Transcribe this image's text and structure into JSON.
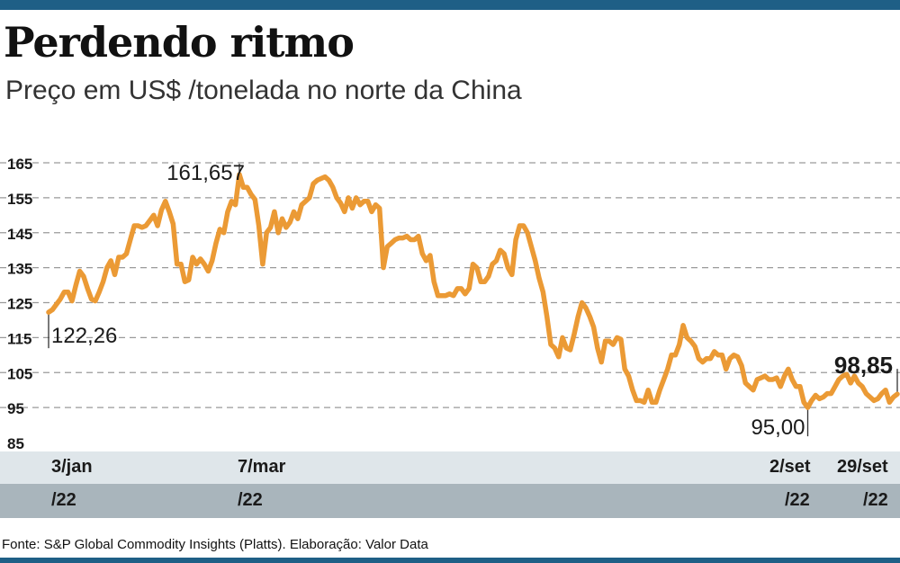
{
  "header": {
    "title": "Perdendo ritmo",
    "subtitle": "Preço em US$ /tonelada no norte da China"
  },
  "footer": {
    "source": "Fonte: S&P Global Commodity Insights (Platts). Elaboração: Valor Data"
  },
  "colors": {
    "line": "#eb9a35",
    "grid": "#9a9a9a",
    "bar_top": "#1f5f86",
    "axis_row_light": "#dfe6ea",
    "axis_row_dark": "#a9b5bc"
  },
  "x_labels": [
    {
      "line1": "3/jan",
      "line2": "/22"
    },
    {
      "line1": "7/mar",
      "line2": "/22"
    },
    {
      "line1": "2/set",
      "line2": "/22"
    },
    {
      "line1": "29/set",
      "line2": "/22"
    }
  ],
  "annotations": {
    "start": "122,26",
    "peak": "161,657",
    "low": "95,00",
    "last": "98,85"
  },
  "chart_data": {
    "type": "line",
    "title": "Perdendo ritmo",
    "subtitle": "Preço em US$ /tonelada no norte da China",
    "ylim": [
      85,
      165
    ],
    "yticks": [
      85,
      95,
      105,
      115,
      125,
      135,
      145,
      155,
      165
    ],
    "ytick_labels": [
      "85",
      "95",
      "105",
      "115",
      "125",
      "135",
      "145",
      "155",
      "165"
    ],
    "x_tick_dates": [
      "2022-01-03",
      "2022-03-07",
      "2022-09-02",
      "2022-09-29"
    ],
    "grid": true,
    "series": [
      {
        "values": [
          122.26,
          123,
          124.5,
          126,
          128,
          128,
          125.5,
          130,
          134,
          132.5,
          129,
          126,
          125.5,
          128,
          131,
          135,
          137,
          133,
          138,
          138,
          139,
          143,
          147,
          147,
          146.5,
          147,
          148.5,
          150,
          147,
          151.5,
          154,
          151,
          147.5,
          136,
          136,
          131,
          131.5,
          138,
          136,
          137.5,
          136,
          134,
          137,
          142,
          146,
          145,
          151,
          154,
          153,
          161.657,
          158,
          158,
          156,
          154.5,
          147,
          136,
          145,
          146.5,
          151,
          145,
          149,
          146.5,
          148,
          151,
          149,
          153,
          154,
          155,
          159,
          160,
          160.5,
          161,
          160,
          158,
          155,
          153.5,
          151,
          155,
          152,
          155,
          153,
          154,
          154,
          151,
          153,
          152,
          135,
          141,
          142,
          143,
          143.5,
          143.5,
          144,
          143,
          143,
          144,
          139,
          137,
          138.5,
          131,
          127,
          127,
          127,
          127.5,
          127,
          129,
          129,
          127.5,
          129,
          136,
          135,
          131,
          131,
          132.5,
          136,
          137,
          140,
          139,
          135,
          133,
          143,
          147,
          147,
          145,
          141,
          137,
          132,
          128,
          121,
          113,
          112,
          109.5,
          115,
          112,
          111.5,
          116,
          121,
          125,
          123.5,
          121,
          118,
          112,
          108,
          114,
          114,
          113,
          115,
          114.5,
          106,
          104,
          100,
          97,
          97,
          96.5,
          100,
          96.5,
          96.5,
          100,
          103,
          106,
          110,
          110,
          113,
          118.5,
          115,
          114,
          112.5,
          109,
          108,
          109,
          109,
          111,
          110,
          110,
          106,
          109,
          110,
          109.5,
          107,
          102,
          101,
          100,
          103,
          103.5,
          104,
          103,
          103,
          103.5,
          101,
          104,
          106,
          103,
          101,
          101,
          96.5,
          95,
          97,
          98.5,
          97.5,
          98,
          99,
          99,
          101,
          103,
          104,
          104.5,
          102,
          104,
          102,
          101,
          99,
          98,
          97,
          97.5,
          99,
          100,
          96.5,
          98,
          98.85
        ]
      }
    ]
  }
}
